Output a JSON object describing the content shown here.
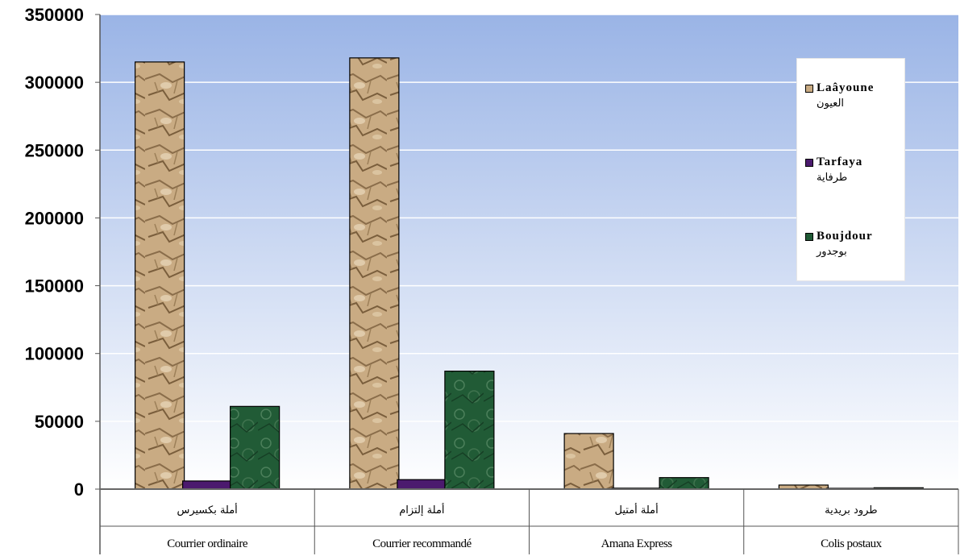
{
  "chart_data": {
    "type": "bar",
    "categories": [
      {
        "fr": "Courrier ordinaire",
        "ar": "أملة بكسيرس"
      },
      {
        "fr": "Courrier recommandé",
        "ar": "أملة إلتزام"
      },
      {
        "fr": "Amana Express",
        "ar": "أملة أمتيل"
      },
      {
        "fr": "Colis postaux",
        "ar": "طرود بريدية"
      }
    ],
    "series": [
      {
        "name": "Laâyoune",
        "name_ar": "العيون",
        "color": "#c8aa82",
        "values": [
          315000,
          318000,
          41000,
          3000
        ]
      },
      {
        "name": "Tarfaya",
        "name_ar": "طرفاية",
        "color": "#4b1a6e",
        "values": [
          6000,
          7000,
          700,
          300
        ]
      },
      {
        "name": "Boujdour",
        "name_ar": "بوجدور",
        "color": "#1f5a35",
        "values": [
          61000,
          87000,
          8500,
          1000
        ]
      }
    ],
    "y_ticks": [
      "0",
      "50000",
      "100000",
      "150000",
      "200000",
      "250000",
      "300000",
      "350000"
    ],
    "ylim": [
      0,
      350000
    ],
    "grid": true,
    "legend_position": "right",
    "plot_background": "gradient #9ab4e6 to #ffffff"
  }
}
